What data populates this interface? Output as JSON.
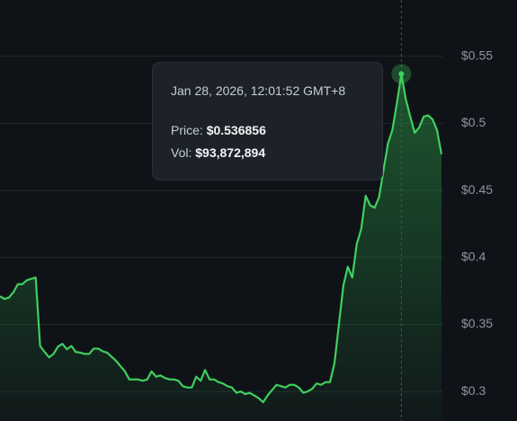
{
  "chart_data": {
    "type": "line",
    "series": [
      {
        "name": "Price",
        "color": "#3fcf5e",
        "values": [
          0.371,
          0.369,
          0.37,
          0.374,
          0.38,
          0.38,
          0.383,
          0.384,
          0.385,
          0.334,
          0.3295,
          0.3255,
          0.328,
          0.3335,
          0.3355,
          0.3315,
          0.334,
          0.3295,
          0.329,
          0.328,
          0.328,
          0.332,
          0.332,
          0.33,
          0.329,
          0.326,
          0.323,
          0.319,
          0.315,
          0.309,
          0.309,
          0.309,
          0.308,
          0.309,
          0.315,
          0.311,
          0.312,
          0.31,
          0.309,
          0.309,
          0.308,
          0.304,
          0.303,
          0.303,
          0.311,
          0.308,
          0.316,
          0.309,
          0.309,
          0.307,
          0.306,
          0.304,
          0.303,
          0.299,
          0.3,
          0.298,
          0.299,
          0.297,
          0.295,
          0.292,
          0.297,
          0.301,
          0.305,
          0.304,
          0.303,
          0.305,
          0.305,
          0.303,
          0.299,
          0.3,
          0.302,
          0.306,
          0.305,
          0.307,
          0.307,
          0.321,
          0.35,
          0.379,
          0.393,
          0.385,
          0.41,
          0.421,
          0.446,
          0.439,
          0.437,
          0.445,
          0.465,
          0.485,
          0.495,
          0.515,
          0.536856,
          0.518,
          0.505,
          0.493,
          0.497,
          0.505,
          0.506,
          0.503,
          0.495,
          0.477
        ]
      }
    ],
    "ylim": [
      0.278,
      0.592
    ],
    "yticks": [
      {
        "value": 0.3,
        "label": "$0.3"
      },
      {
        "value": 0.35,
        "label": "$0.35"
      },
      {
        "value": 0.4,
        "label": "$0.4"
      },
      {
        "value": 0.45,
        "label": "$0.45"
      },
      {
        "value": 0.5,
        "label": "$0.5"
      },
      {
        "value": 0.55,
        "label": "$0.55"
      }
    ],
    "grid": true,
    "tooltip": {
      "date": "Jan 28, 2026, 12:01:52 GMT+8",
      "price_label": "Price:",
      "price": "$0.536856",
      "vol_label": "Vol:",
      "vol": "$93,872,894"
    }
  }
}
